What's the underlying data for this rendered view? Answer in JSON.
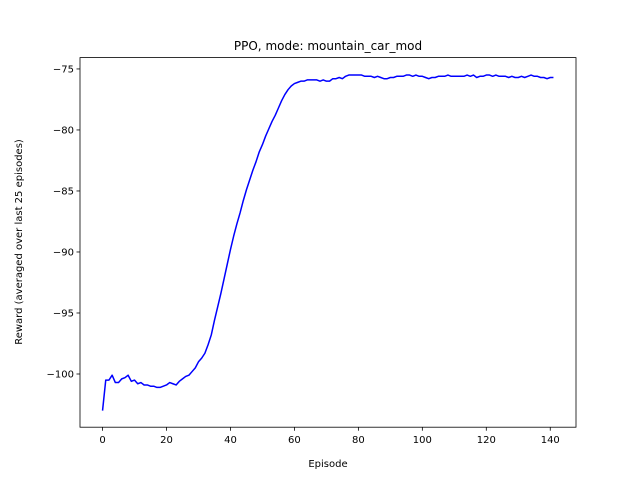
{
  "chart_data": {
    "type": "line",
    "title": "PPO, mode: mountain_car_mod",
    "xlabel": "Episode",
    "ylabel": "Reward (averaged over last 25 episodes)",
    "color": "#0000ff",
    "x": [
      0,
      1,
      2,
      3,
      4,
      5,
      6,
      7,
      8,
      9,
      10,
      11,
      12,
      13,
      14,
      15,
      16,
      17,
      18,
      19,
      20,
      21,
      22,
      23,
      24,
      25,
      26,
      27,
      28,
      29,
      30,
      31,
      32,
      33,
      34,
      35,
      36,
      37,
      38,
      39,
      40,
      41,
      42,
      43,
      44,
      45,
      46,
      47,
      48,
      49,
      50,
      51,
      52,
      53,
      54,
      55,
      56,
      57,
      58,
      59,
      60,
      61,
      62,
      63,
      64,
      65,
      66,
      67,
      68,
      69,
      70,
      71,
      72,
      73,
      74,
      75,
      76,
      77,
      78,
      79,
      80,
      81,
      82,
      83,
      84,
      85,
      86,
      87,
      88,
      89,
      90,
      91,
      92,
      93,
      94,
      95,
      96,
      97,
      98,
      99,
      100,
      101,
      102,
      103,
      104,
      105,
      106,
      107,
      108,
      109,
      110,
      111,
      112,
      113,
      114,
      115,
      116,
      117,
      118,
      119,
      120,
      121,
      122,
      123,
      124,
      125,
      126,
      127,
      128,
      129,
      130,
      131,
      132,
      133,
      134,
      135,
      136,
      137,
      138,
      139,
      140,
      141
    ],
    "values": [
      -103,
      -100.5,
      -100.5,
      -100.1,
      -100.7,
      -100.7,
      -100.4,
      -100.3,
      -100.1,
      -100.6,
      -100.5,
      -100.8,
      -100.7,
      -100.9,
      -100.9,
      -101.0,
      -101.0,
      -101.1,
      -101.1,
      -101.0,
      -100.9,
      -100.7,
      -100.8,
      -100.9,
      -100.6,
      -100.4,
      -100.2,
      -100.1,
      -99.8,
      -99.5,
      -99.0,
      -98.7,
      -98.3,
      -97.6,
      -96.8,
      -95.6,
      -94.5,
      -93.4,
      -92.2,
      -91.0,
      -89.8,
      -88.7,
      -87.7,
      -86.8,
      -85.8,
      -84.9,
      -84.1,
      -83.3,
      -82.6,
      -81.8,
      -81.2,
      -80.5,
      -79.9,
      -79.3,
      -78.8,
      -78.2,
      -77.6,
      -77.1,
      -76.7,
      -76.4,
      -76.2,
      -76.1,
      -76.0,
      -76.0,
      -75.9,
      -75.9,
      -75.9,
      -75.9,
      -76.0,
      -75.9,
      -76.0,
      -76.0,
      -75.8,
      -75.8,
      -75.7,
      -75.8,
      -75.6,
      -75.5,
      -75.5,
      -75.5,
      -75.5,
      -75.5,
      -75.6,
      -75.6,
      -75.6,
      -75.7,
      -75.6,
      -75.7,
      -75.8,
      -75.8,
      -75.7,
      -75.7,
      -75.6,
      -75.6,
      -75.6,
      -75.5,
      -75.5,
      -75.6,
      -75.5,
      -75.6,
      -75.6,
      -75.7,
      -75.8,
      -75.7,
      -75.7,
      -75.6,
      -75.6,
      -75.6,
      -75.5,
      -75.6,
      -75.6,
      -75.6,
      -75.6,
      -75.6,
      -75.5,
      -75.6,
      -75.5,
      -75.7,
      -75.6,
      -75.6,
      -75.5,
      -75.5,
      -75.6,
      -75.5,
      -75.6,
      -75.6,
      -75.6,
      -75.7,
      -75.6,
      -75.7,
      -75.7,
      -75.6,
      -75.7,
      -75.6,
      -75.5,
      -75.6,
      -75.6,
      -75.7,
      -75.7,
      -75.8,
      -75.7,
      -75.7
    ],
    "xlim": [
      -7.05,
      148.05
    ],
    "ylim": [
      -104.36,
      -74.07
    ],
    "xticks": [
      0,
      20,
      40,
      60,
      80,
      100,
      120,
      140
    ],
    "yticks": [
      {
        "value": -100,
        "label": "−100"
      },
      {
        "value": -95,
        "label": "−95"
      },
      {
        "value": -90,
        "label": "−90"
      },
      {
        "value": -85,
        "label": "−85"
      },
      {
        "value": -80,
        "label": "−80"
      },
      {
        "value": -75,
        "label": "−75"
      }
    ]
  }
}
